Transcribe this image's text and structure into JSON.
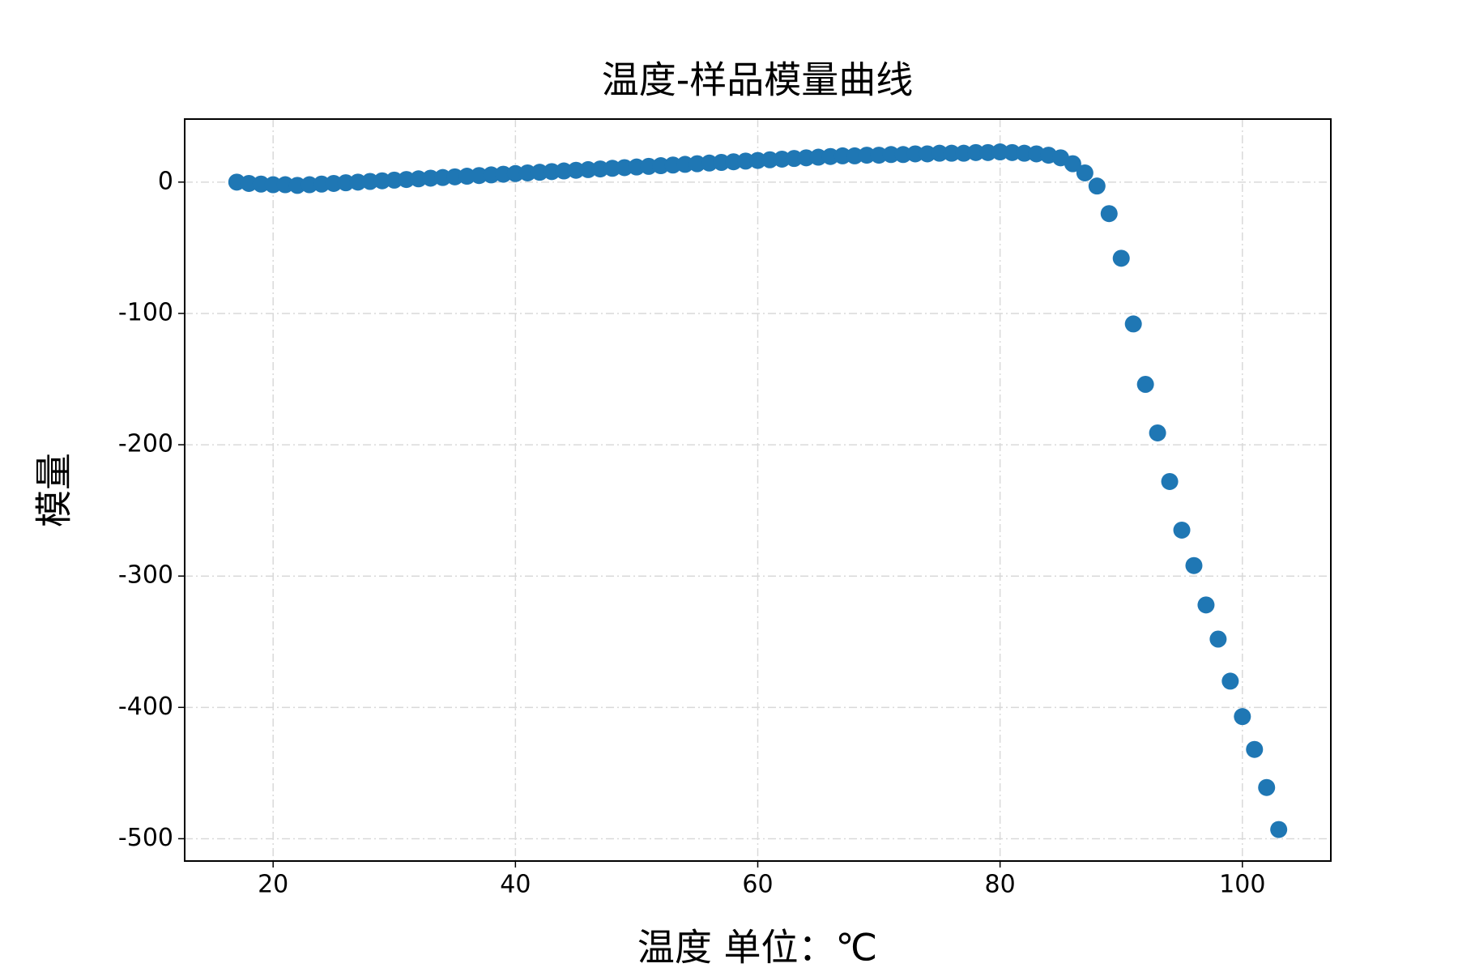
{
  "chart_data": {
    "type": "scatter",
    "title": "温度-样品模量曲线",
    "x_label": "温度 单位：℃",
    "y_label": "模量",
    "x": [
      17,
      18,
      19,
      20,
      21,
      22,
      23,
      24,
      25,
      26,
      27,
      28,
      29,
      30,
      31,
      32,
      33,
      34,
      35,
      36,
      37,
      38,
      39,
      40,
      41,
      42,
      43,
      44,
      45,
      46,
      47,
      48,
      49,
      50,
      51,
      52,
      53,
      54,
      55,
      56,
      57,
      58,
      59,
      60,
      61,
      62,
      63,
      64,
      65,
      66,
      67,
      68,
      69,
      70,
      71,
      72,
      73,
      74,
      75,
      76,
      77,
      78,
      79,
      80,
      81,
      82,
      83,
      84,
      85,
      86,
      87,
      88,
      89,
      90,
      91,
      92,
      93,
      94,
      95,
      96,
      97,
      98,
      99,
      100,
      101,
      102,
      103
    ],
    "series": [
      {
        "color": "#1f77b4",
        "values": [
          0,
          -1,
          -1.5,
          -2,
          -2,
          -2.5,
          -2,
          -1.5,
          -1,
          -0.5,
          0,
          0.5,
          1,
          1.5,
          2,
          2.5,
          3,
          3.5,
          4,
          4.5,
          5,
          5.5,
          6,
          6.5,
          7,
          7.5,
          8,
          8.5,
          9,
          9.5,
          10,
          10.5,
          11,
          11.5,
          12,
          12.5,
          13,
          13.5,
          14,
          14.5,
          15,
          15.5,
          16,
          16.5,
          17,
          17.5,
          18,
          18.5,
          19,
          19.5,
          20,
          20,
          20.5,
          20.5,
          21,
          21,
          21.5,
          21.5,
          22,
          22,
          22,
          22.5,
          22.5,
          23,
          22.5,
          22,
          21.5,
          20.5,
          18.5,
          14,
          7,
          -3,
          -24,
          -58,
          -108,
          -154,
          -191,
          -228,
          -265,
          -292,
          -322,
          -348,
          -380,
          -407,
          -432,
          -461,
          -493
        ]
      }
    ],
    "xlim": [
      12.7,
      107.3
    ],
    "ylim": [
      -517,
      48
    ],
    "xticks": [
      20,
      40,
      60,
      80,
      100
    ],
    "yticks": [
      -500,
      -400,
      -300,
      -200,
      -100,
      0
    ],
    "grid": true
  }
}
